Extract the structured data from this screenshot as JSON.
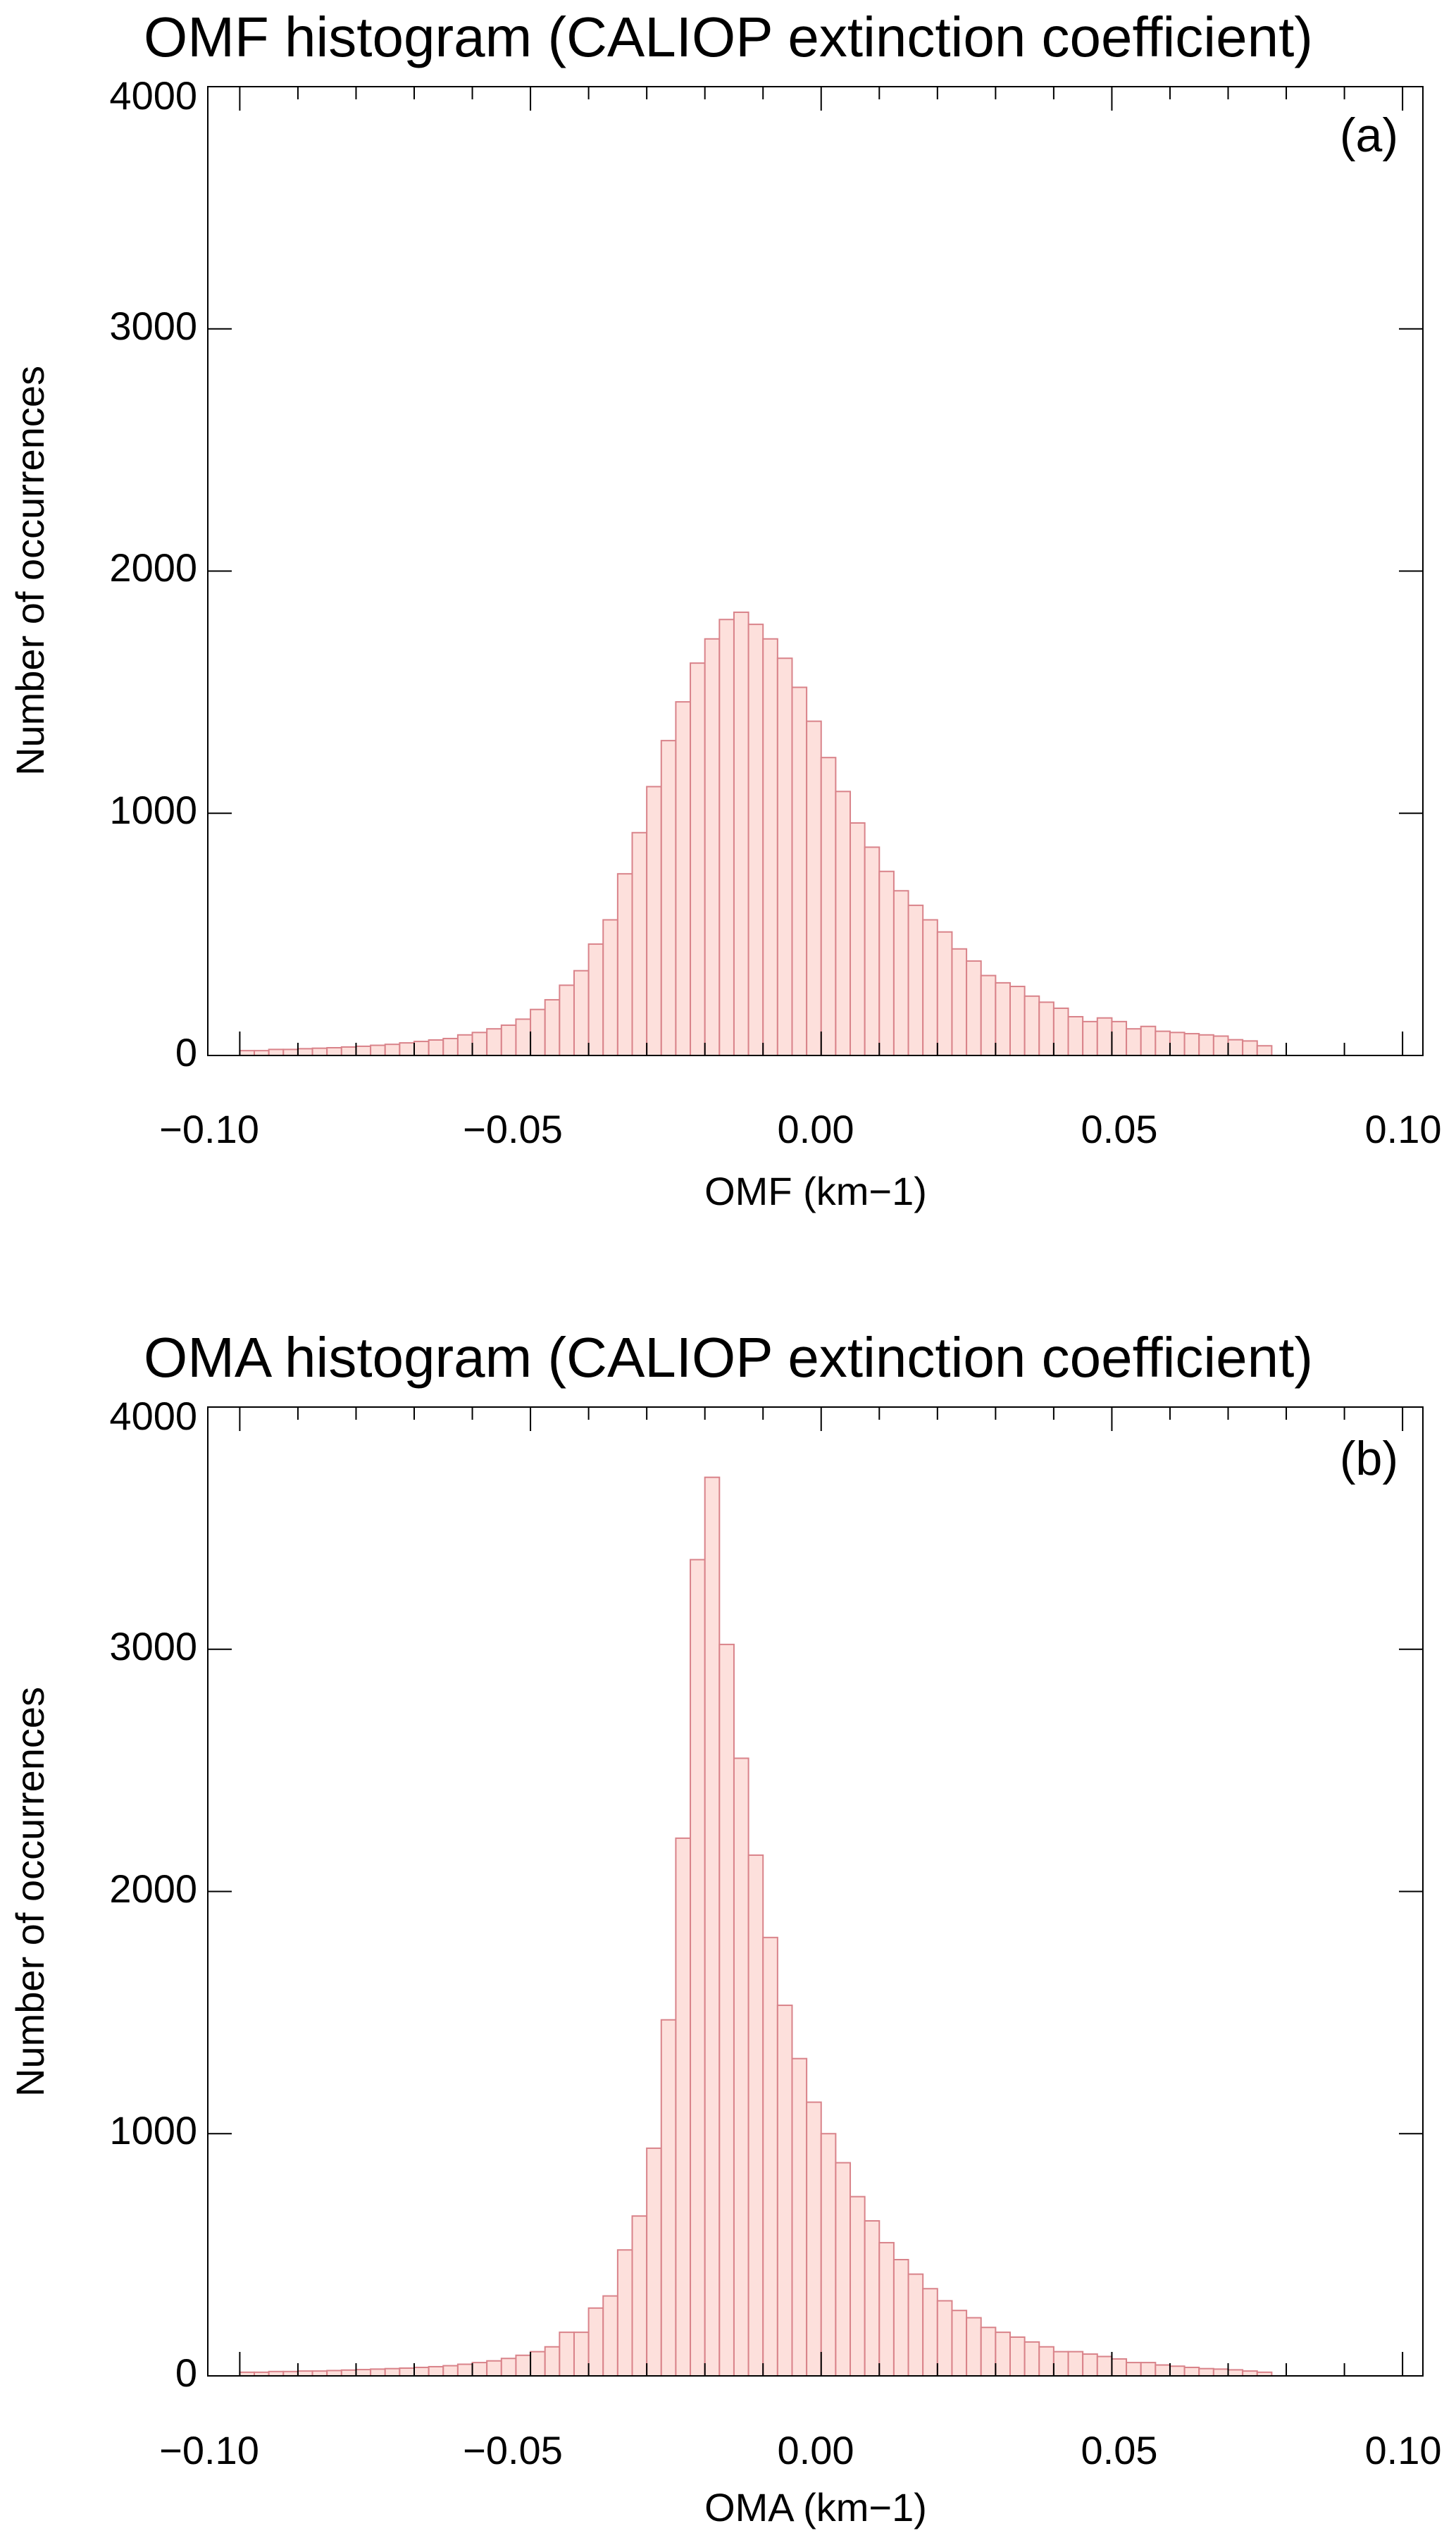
{
  "chart_data": [
    {
      "type": "bar",
      "panel_label": "(a)",
      "title": "OMF histogram (CALIOP extinction coefficient)",
      "xlabel": "OMF (km−1)",
      "ylabel": "Number of occurrences",
      "xlim": [
        -0.1,
        0.1
      ],
      "ylim": [
        0,
        4000
      ],
      "grid": false,
      "bin_start": -0.1,
      "bin_width": 0.0025,
      "x_ticks": [
        "−0.10",
        "−0.05",
        "0.00",
        "0.05",
        "0.10"
      ],
      "y_ticks": [
        "0",
        "1000",
        "2000",
        "3000",
        "4000"
      ],
      "fill_color": "#fde0dc",
      "edge_color": "#d9838a",
      "values": [
        20,
        20,
        25,
        25,
        28,
        30,
        32,
        35,
        38,
        42,
        46,
        52,
        58,
        64,
        70,
        85,
        95,
        110,
        125,
        150,
        190,
        230,
        290,
        350,
        460,
        560,
        750,
        920,
        1110,
        1300,
        1460,
        1620,
        1720,
        1800,
        1830,
        1780,
        1720,
        1640,
        1520,
        1380,
        1230,
        1090,
        960,
        860,
        760,
        680,
        620,
        560,
        510,
        440,
        390,
        330,
        300,
        285,
        245,
        220,
        195,
        160,
        140,
        155,
        140,
        110,
        120,
        100,
        95,
        90,
        85,
        80,
        65,
        60,
        40
      ]
    },
    {
      "type": "bar",
      "panel_label": "(b)",
      "title": "OMA histogram (CALIOP extinction coefficient)",
      "xlabel": "OMA (km−1)",
      "ylabel": "Number of occurrences",
      "xlim": [
        -0.1,
        0.1
      ],
      "ylim": [
        0,
        4000
      ],
      "grid": false,
      "bin_start": -0.1,
      "bin_width": 0.0025,
      "x_ticks": [
        "−0.10",
        "−0.05",
        "0.00",
        "0.05",
        "0.10"
      ],
      "y_ticks": [
        "0",
        "1000",
        "2000",
        "3000",
        "4000"
      ],
      "fill_color": "#fde0dc",
      "edge_color": "#d9838a",
      "values": [
        15,
        15,
        18,
        18,
        20,
        20,
        22,
        24,
        26,
        28,
        30,
        32,
        35,
        38,
        42,
        48,
        55,
        62,
        72,
        85,
        100,
        120,
        180,
        180,
        280,
        330,
        520,
        660,
        940,
        1470,
        2220,
        3370,
        3710,
        3020,
        2550,
        2150,
        1810,
        1530,
        1310,
        1130,
        1000,
        880,
        740,
        640,
        550,
        480,
        420,
        360,
        310,
        270,
        240,
        200,
        180,
        160,
        140,
        120,
        100,
        100,
        90,
        80,
        70,
        55,
        55,
        45,
        40,
        35,
        30,
        28,
        25,
        20,
        15
      ]
    }
  ]
}
